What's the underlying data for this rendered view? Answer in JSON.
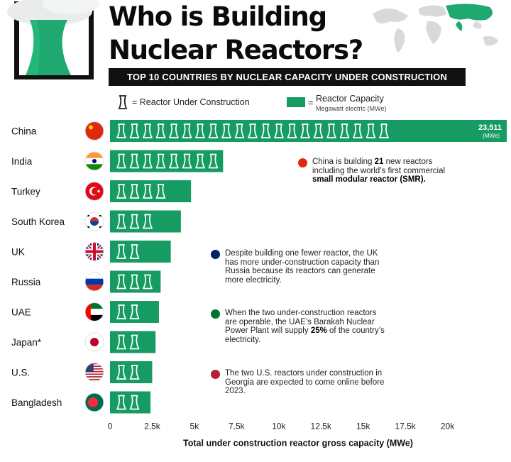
{
  "header": {
    "title_line1": "Who is Building",
    "title_line2": "Nuclear Reactors?",
    "subtitle": "TOP 10 COUNTRIES BY NUCLEAR CAPACITY UNDER CONSTRUCTION"
  },
  "legend": {
    "reactor_label": "= Reactor Under Construction",
    "capacity_eq": "=",
    "capacity_label": "Reactor Capacity",
    "capacity_sub": "Megawatt electric (MWe)"
  },
  "notes": {
    "china": {
      "pre": "China is building ",
      "bold": "21",
      "post": " new reactors including the world’s first commercial ",
      "bold2": "small modular reactor (SMR)."
    },
    "uk": "Despite building one fewer reactor, the UK has more under-construction capacity than Russia because its reactors can generate more electricity.",
    "uae": {
      "pre": "When the two under-construction reactors are operable, the UAE’s Barakah Nuclear Power Plant will supply ",
      "bold": "25%",
      "post": " of the country’s electricity."
    },
    "us": "The two U.S. reactors under construction in Georgia are expected to come online before 2023."
  },
  "colors": {
    "bar": "#169b62",
    "text": "#111111"
  },
  "chart_data": {
    "type": "bar",
    "orientation": "horizontal",
    "categories": [
      "China",
      "India",
      "Turkey",
      "South Korea",
      "UK",
      "Russia",
      "UAE",
      "Japan*",
      "U.S.",
      "Bangladesh"
    ],
    "values": [
      23511,
      6700,
      4800,
      4200,
      3600,
      3000,
      2900,
      2700,
      2500,
      2400
    ],
    "reactors": [
      21,
      8,
      4,
      3,
      2,
      3,
      2,
      2,
      2,
      2
    ],
    "flags": [
      "china",
      "india",
      "turkey",
      "south-korea",
      "uk",
      "russia",
      "uae",
      "japan",
      "us",
      "bangladesh"
    ],
    "value_label": {
      "index": 0,
      "value": "23,511",
      "unit": "(MWe)"
    },
    "xlabel": "Total under construction reactor gross capacity (MWe)",
    "xticks": [
      0,
      2500,
      5000,
      7500,
      10000,
      12500,
      15000,
      17500,
      20000
    ],
    "xtick_labels": [
      "0",
      "2.5k",
      "5k",
      "7.5k",
      "10k",
      "12.5k",
      "15k",
      "17.5k",
      "20k"
    ],
    "xlim": [
      0,
      22500
    ]
  }
}
